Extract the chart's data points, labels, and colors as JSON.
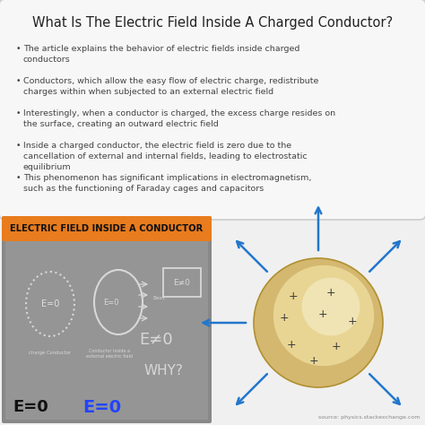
{
  "title": "What Is The Electric Field Inside A Charged Conductor?",
  "title_fontsize": 10.5,
  "title_color": "#222222",
  "background_color": "#f0f0f0",
  "bullets": [
    "The article explains the behavior of electric fields inside charged\nconductors",
    "Conductors, which allow the easy flow of electric charge, redistribute\ncharges within when subjected to an external electric field",
    "Interestingly, when a conductor is charged, the excess charge resides on\nthe surface, creating an outward electric field",
    "Inside a charged conductor, the electric field is zero due to the\ncancellation of external and internal fields, leading to electrostatic\nequilibrium",
    "This phenomenon has significant implications in electromagnetism,\nsuch as the functioning of Faraday cages and capacitors"
  ],
  "bullet_fontsize": 6.8,
  "bullet_color": "#444444",
  "orange_label": "ELECTRIC FIELD INSIDE A CONDUCTOR",
  "orange_label_fontsize": 7.2,
  "orange_bg": "#e87c1e",
  "panel_bg": "#888888",
  "chalk_bg": "#999999",
  "arrow_color": "#2277cc",
  "plus_color": "#3a3a3a",
  "source_text": "source: physics.stackexchange.com",
  "source_fontsize": 4.5,
  "source_color": "#888888",
  "sphere_gold": "#d4b870",
  "sphere_light": "#f0e0a0",
  "sphere_highlight": "#f8f2d0"
}
